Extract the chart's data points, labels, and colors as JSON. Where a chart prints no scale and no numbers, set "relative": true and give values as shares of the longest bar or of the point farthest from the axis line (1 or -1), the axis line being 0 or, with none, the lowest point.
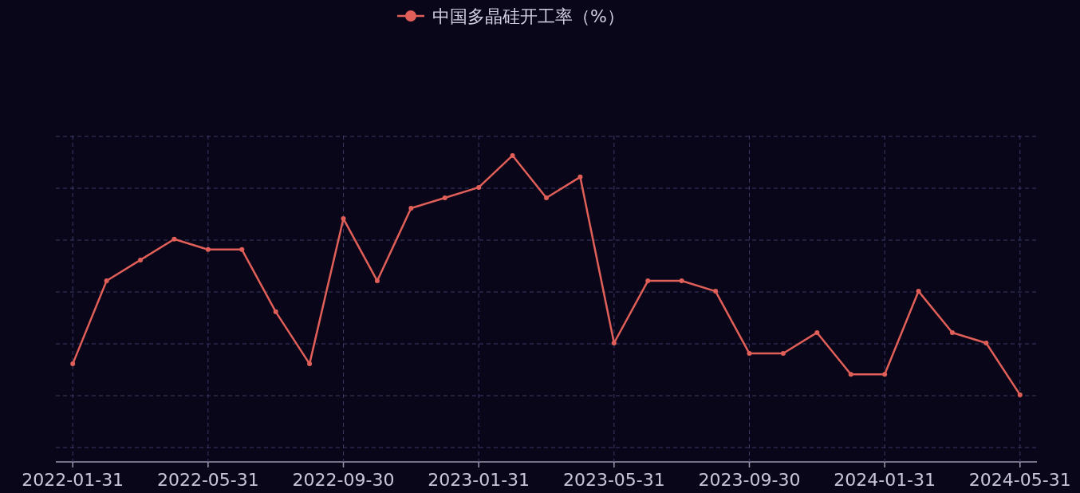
{
  "chart_data": {
    "type": "line",
    "relative": true,
    "categories": [
      "2022-01-31",
      null,
      null,
      null,
      "2022-05-31",
      null,
      null,
      null,
      "2022-09-30",
      null,
      null,
      null,
      "2023-01-31",
      null,
      null,
      null,
      "2023-05-31",
      null,
      null,
      null,
      "2023-09-30",
      null,
      null,
      null,
      "2024-01-31",
      null,
      null,
      null,
      "2024-05-31"
    ],
    "series": [
      {
        "name": "中国多晶硅开工率（%）",
        "color": "#e05f58",
        "values": [
          0.32,
          0.591,
          0.659,
          0.727,
          0.693,
          0.693,
          0.49,
          0.32,
          0.794,
          0.591,
          0.828,
          0.862,
          0.896,
          1,
          0.862,
          0.93,
          0.388,
          0.591,
          0.591,
          0.557,
          0.354,
          0.354,
          0.422,
          0.286,
          0.286,
          0.557,
          0.422,
          0.388,
          0.219
        ]
      }
    ],
    "grid": true,
    "legend": "top",
    "marker": "circle",
    "line_style": "solid"
  }
}
